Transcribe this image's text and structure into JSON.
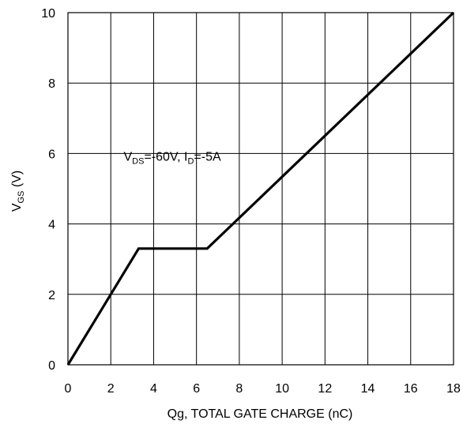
{
  "chart_data": {
    "type": "line",
    "title": "",
    "xlabel": "Qg, TOTAL GATE CHARGE (nC)",
    "ylabel": {
      "main": "V",
      "sub": "GS",
      "unit": " (V)"
    },
    "xlim": [
      0,
      18
    ],
    "ylim": [
      0,
      10
    ],
    "x_ticks": [
      0,
      2,
      4,
      6,
      8,
      10,
      12,
      14,
      16,
      18
    ],
    "y_ticks": [
      0,
      2,
      4,
      6,
      8,
      10
    ],
    "x_grid_step": 2,
    "y_grid_step": 2,
    "grid": true,
    "series": [
      {
        "x": [
          0,
          3.3,
          6.5,
          18
        ],
        "y": [
          0,
          3.3,
          3.3,
          10
        ]
      }
    ],
    "annotation": {
      "parts": [
        {
          "text": "V",
          "sub": false
        },
        {
          "text": "DS",
          "sub": true
        },
        {
          "text": "=-60V, I",
          "sub": false
        },
        {
          "text": "D",
          "sub": true
        },
        {
          "text": "=-5A",
          "sub": false
        }
      ],
      "x": 2.6,
      "y": 5.8
    }
  }
}
